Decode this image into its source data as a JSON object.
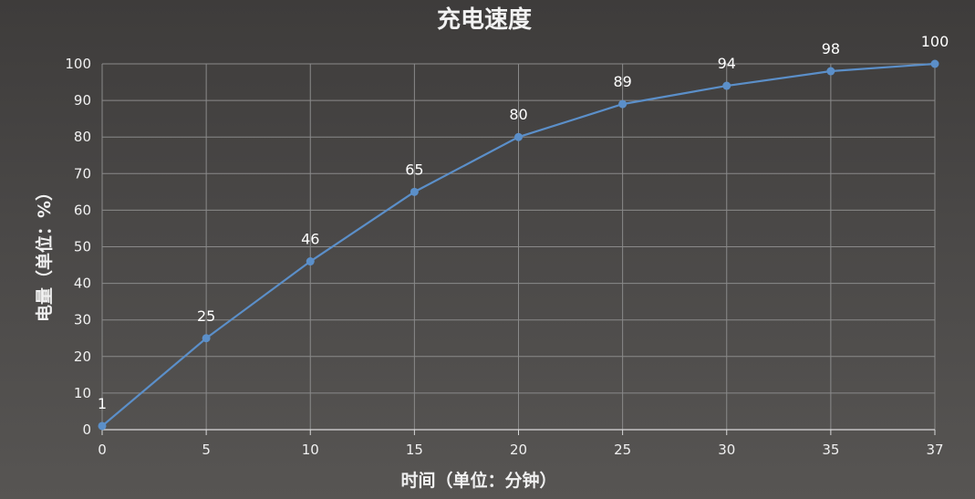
{
  "chart_data": {
    "type": "line",
    "title": "充电速度",
    "xlabel": "时间（单位：分钟）",
    "ylabel": "电量（单位：%）",
    "x": [
      0,
      5,
      10,
      15,
      20,
      25,
      30,
      35,
      37
    ],
    "series": [
      {
        "values": [
          1,
          25,
          46,
          65,
          80,
          89,
          94,
          98,
          100
        ]
      }
    ],
    "xticks": [
      "0",
      "5",
      "10",
      "15",
      "20",
      "25",
      "30",
      "35",
      "37"
    ],
    "yticks": [
      0,
      10,
      20,
      30,
      40,
      50,
      60,
      70,
      80,
      90,
      100
    ],
    "ylim": [
      0,
      100
    ],
    "grid": true,
    "legend": "none",
    "colors": {
      "line": "#5b8fc9",
      "grid": "#8a8a8a",
      "text": "#f0f0f0"
    }
  }
}
